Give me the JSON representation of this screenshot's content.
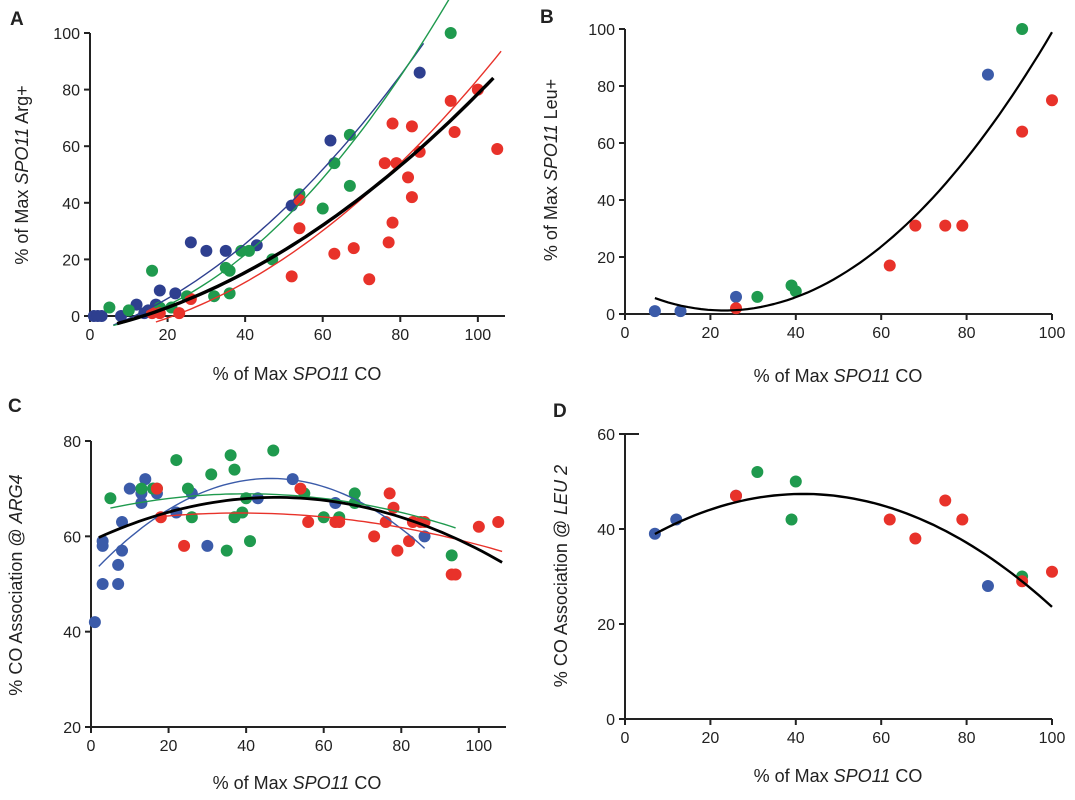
{
  "colors": {
    "blue": "#3b5ba9",
    "navy": "#2e3f8f",
    "green": "#1f9a4e",
    "red": "#e8322a",
    "axis": "#222222",
    "fit": "#000000"
  },
  "chart_data": [
    {
      "id": "A",
      "type": "scatter",
      "panel_label": "A",
      "xlabel": [
        "% of Max ",
        "SPO11",
        " CO"
      ],
      "ylabel": [
        "% of Max ",
        "SPO11",
        " Arg+"
      ],
      "xlim": [
        0,
        107
      ],
      "ylim": [
        0,
        100
      ],
      "xticks": [
        0,
        20,
        40,
        60,
        80,
        100
      ],
      "yticks": [
        0,
        20,
        40,
        60,
        80,
        100
      ],
      "series": [
        {
          "color": "navy",
          "points": [
            [
              1,
              0
            ],
            [
              2,
              0
            ],
            [
              3,
              0
            ],
            [
              8,
              0
            ],
            [
              12,
              4
            ],
            [
              14,
              1
            ],
            [
              15,
              2
            ],
            [
              17,
              4
            ],
            [
              18,
              9
            ],
            [
              22,
              8
            ],
            [
              26,
              26
            ],
            [
              30,
              23
            ],
            [
              35,
              23
            ],
            [
              43,
              25
            ],
            [
              52,
              39
            ],
            [
              62,
              62
            ],
            [
              85,
              86
            ]
          ]
        },
        {
          "color": "green",
          "points": [
            [
              5,
              3
            ],
            [
              10,
              2
            ],
            [
              16,
              16
            ],
            [
              18,
              3
            ],
            [
              21,
              3
            ],
            [
              25,
              7
            ],
            [
              32,
              7
            ],
            [
              35,
              17
            ],
            [
              36,
              16
            ],
            [
              36,
              8
            ],
            [
              39,
              23
            ],
            [
              41,
              23
            ],
            [
              47,
              20
            ],
            [
              54,
              43
            ],
            [
              60,
              38
            ],
            [
              63,
              54
            ],
            [
              67,
              64
            ],
            [
              67,
              46
            ],
            [
              93,
              100
            ]
          ]
        },
        {
          "color": "red",
          "points": [
            [
              16,
              1
            ],
            [
              18,
              1
            ],
            [
              23,
              1
            ],
            [
              26,
              6
            ],
            [
              52,
              14
            ],
            [
              54,
              41
            ],
            [
              54,
              31
            ],
            [
              63,
              22
            ],
            [
              68,
              24
            ],
            [
              72,
              13
            ],
            [
              76,
              54
            ],
            [
              77,
              26
            ],
            [
              78,
              33
            ],
            [
              78,
              68
            ],
            [
              79,
              54
            ],
            [
              82,
              49
            ],
            [
              83,
              67
            ],
            [
              83,
              42
            ],
            [
              85,
              58
            ],
            [
              93,
              76
            ],
            [
              94,
              65
            ],
            [
              100,
              80
            ],
            [
              105,
              59
            ]
          ]
        }
      ],
      "fits": [
        {
          "color": "navy",
          "width": 1.4,
          "x": [
            6,
            86
          ],
          "coef": [
            -6.2,
            0.445,
            0.00869
          ]
        },
        {
          "color": "green",
          "width": 1.4,
          "x": [
            6,
            94
          ],
          "coef": [
            -5.07,
            0.216,
            0.01132
          ]
        },
        {
          "color": "red",
          "width": 1.4,
          "x": [
            17,
            106
          ],
          "coef": [
            -7.69,
            0.207,
            0.00706
          ]
        },
        {
          "color": "fit",
          "width": 3.4,
          "x": [
            7,
            104
          ],
          "coef": [
            -5.0,
            0.292,
            0.00543
          ]
        }
      ]
    },
    {
      "id": "B",
      "type": "scatter",
      "panel_label": "B",
      "xlabel": [
        "% of Max ",
        "SPO11",
        " CO"
      ],
      "ylabel": [
        "% of Max ",
        "SPO11",
        " Leu+"
      ],
      "xlim": [
        0,
        100
      ],
      "ylim": [
        0,
        100
      ],
      "xticks": [
        0,
        20,
        40,
        60,
        80,
        100
      ],
      "yticks": [
        0,
        20,
        40,
        60,
        80,
        100
      ],
      "series": [
        {
          "color": "blue",
          "points": [
            [
              7,
              1
            ],
            [
              13,
              1
            ],
            [
              26,
              6
            ],
            [
              85,
              84
            ]
          ]
        },
        {
          "color": "green",
          "points": [
            [
              31,
              6
            ],
            [
              39,
              10
            ],
            [
              40,
              8
            ],
            [
              93,
              100
            ]
          ]
        },
        {
          "color": "red",
          "points": [
            [
              26,
              2
            ],
            [
              62,
              17
            ],
            [
              68,
              31
            ],
            [
              75,
              31
            ],
            [
              79,
              31
            ],
            [
              93,
              64
            ],
            [
              100,
              75
            ]
          ]
        }
      ],
      "fits": [
        {
          "color": "fit",
          "width": 2.2,
          "x": [
            7,
            100
          ],
          "coef": [
            10.16,
            -0.769,
            0.01656
          ]
        }
      ]
    },
    {
      "id": "C",
      "type": "scatter",
      "panel_label": "C",
      "xlabel": [
        "% of Max ",
        "SPO11",
        " CO"
      ],
      "ylabel": [
        "% CO Association @ ",
        "ARG4",
        ""
      ],
      "xlim": [
        0,
        107
      ],
      "ylim": [
        20,
        80
      ],
      "xticks": [
        0,
        20,
        40,
        60,
        80,
        100
      ],
      "yticks": [
        20,
        40,
        60,
        80
      ],
      "series": [
        {
          "color": "blue",
          "points": [
            [
              1,
              42
            ],
            [
              3,
              50
            ],
            [
              3,
              59
            ],
            [
              3,
              58
            ],
            [
              7,
              50
            ],
            [
              7,
              54
            ],
            [
              8,
              57
            ],
            [
              8,
              63
            ],
            [
              10,
              70
            ],
            [
              13,
              67
            ],
            [
              13,
              69
            ],
            [
              14,
              72
            ],
            [
              16,
              70
            ],
            [
              17,
              69
            ],
            [
              22,
              65
            ],
            [
              26,
              69
            ],
            [
              30,
              58
            ],
            [
              43,
              68
            ],
            [
              52,
              72
            ],
            [
              63,
              67
            ],
            [
              86,
              60
            ]
          ]
        },
        {
          "color": "green",
          "points": [
            [
              5,
              68
            ],
            [
              13,
              70
            ],
            [
              16,
              70
            ],
            [
              17,
              70
            ],
            [
              22,
              76
            ],
            [
              25,
              70
            ],
            [
              26,
              64
            ],
            [
              31,
              73
            ],
            [
              35,
              57
            ],
            [
              36,
              77
            ],
            [
              37,
              64
            ],
            [
              37,
              74
            ],
            [
              39,
              65
            ],
            [
              40,
              68
            ],
            [
              41,
              59
            ],
            [
              47,
              78
            ],
            [
              55,
              69
            ],
            [
              60,
              64
            ],
            [
              64,
              64
            ],
            [
              68,
              67
            ],
            [
              68,
              69
            ],
            [
              93,
              56
            ]
          ]
        },
        {
          "color": "red",
          "points": [
            [
              17,
              70
            ],
            [
              18,
              64
            ],
            [
              24,
              58
            ],
            [
              54,
              70
            ],
            [
              56,
              63
            ],
            [
              63,
              63
            ],
            [
              64,
              63
            ],
            [
              73,
              60
            ],
            [
              76,
              63
            ],
            [
              77,
              69
            ],
            [
              78,
              66
            ],
            [
              79,
              57
            ],
            [
              82,
              59
            ],
            [
              83,
              63
            ],
            [
              85,
              63
            ],
            [
              86,
              63
            ],
            [
              93,
              52
            ],
            [
              94,
              52
            ],
            [
              100,
              62
            ],
            [
              105,
              63
            ]
          ]
        }
      ],
      "fits": [
        {
          "color": "blue",
          "width": 1.4,
          "x": [
            2,
            86
          ],
          "coef": [
            52.0,
            0.868,
            -0.00935
          ]
        },
        {
          "color": "green",
          "width": 1.4,
          "x": [
            5,
            94
          ],
          "coef": [
            65.0,
            0.196,
            -0.00245
          ]
        },
        {
          "color": "red",
          "width": 1.4,
          "x": [
            17,
            106
          ],
          "coef": [
            62.3,
            0.135,
            -0.00176
          ]
        },
        {
          "color": "fit",
          "width": 2.8,
          "x": [
            2,
            106
          ],
          "coef": [
            59.0,
            0.384,
            -0.00402
          ]
        }
      ]
    },
    {
      "id": "D",
      "type": "scatter",
      "panel_label": "D",
      "xlabel": [
        "% of Max ",
        "SPO11",
        " CO"
      ],
      "ylabel": [
        "% CO Association @ ",
        "LEU 2",
        ""
      ],
      "xlim": [
        0,
        100
      ],
      "ylim": [
        0,
        60
      ],
      "xticks": [
        0,
        20,
        40,
        60,
        80,
        100
      ],
      "yticks": [
        0,
        20,
        40,
        60
      ],
      "series": [
        {
          "color": "blue",
          "points": [
            [
              7,
              39
            ],
            [
              12,
              42
            ],
            [
              26,
              47
            ],
            [
              85,
              28
            ]
          ]
        },
        {
          "color": "green",
          "points": [
            [
              31,
              52
            ],
            [
              39,
              42
            ],
            [
              40,
              50
            ],
            [
              93,
              30
            ]
          ]
        },
        {
          "color": "red",
          "points": [
            [
              26,
              47
            ],
            [
              62,
              42
            ],
            [
              68,
              38
            ],
            [
              75,
              46
            ],
            [
              79,
              42
            ],
            [
              93,
              29
            ],
            [
              100,
              31
            ]
          ]
        }
      ],
      "fits": [
        {
          "color": "fit",
          "width": 2.4,
          "x": [
            7,
            100
          ],
          "coef": [
            35.2,
            0.584,
            -0.007
          ]
        }
      ]
    }
  ]
}
